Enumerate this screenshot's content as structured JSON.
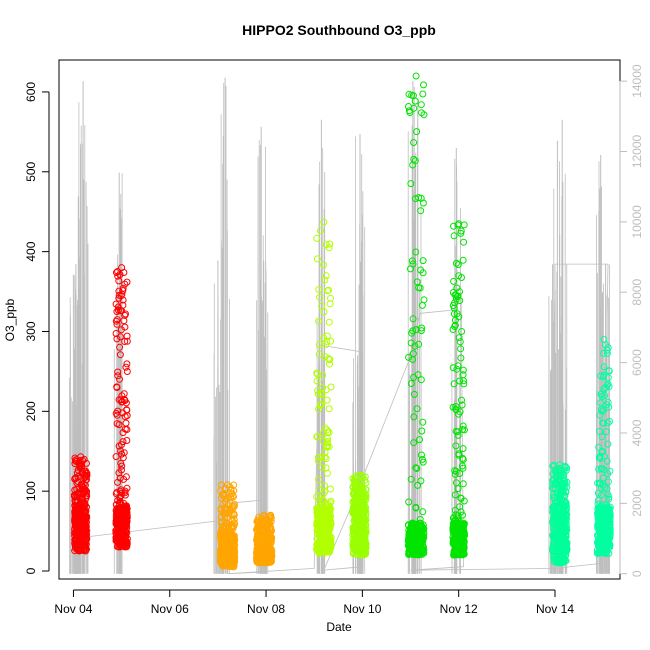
{
  "chart_data": {
    "type": "scatter",
    "title": "HIPPO2 Southbound O3_ppb",
    "xlabel": "Date",
    "ylabel": "O3_ppb",
    "xlim": [
      3.7,
      15.35
    ],
    "ylim": [
      -10,
      640
    ],
    "y2lim": [
      -150,
      14600
    ],
    "x_ticks": [
      4,
      6,
      8,
      10,
      12,
      14
    ],
    "x_tick_labels": [
      "Nov 04",
      "Nov 06",
      "Nov 08",
      "Nov 10",
      "Nov 12",
      "Nov 14"
    ],
    "y_ticks": [
      0,
      100,
      200,
      300,
      400,
      500,
      600
    ],
    "y2_ticks": [
      0,
      2000,
      4000,
      6000,
      8000,
      10000,
      12000,
      14000
    ],
    "grid": false,
    "colors": {
      "altitude_trace": "#bebebe",
      "axis": "#000000",
      "right_axis": "#bebebe"
    },
    "series": [
      {
        "color": "#ff0000",
        "x_start": 4.02,
        "x_end": 4.28,
        "baseline_range": [
          25,
          80
        ],
        "spike_max": 143
      },
      {
        "color": "#ff0000",
        "x_start": 4.88,
        "x_end": 5.12,
        "baseline_range": [
          30,
          80
        ],
        "spike_max": 380
      },
      {
        "color": "#ffa500",
        "x_start": 7.05,
        "x_end": 7.35,
        "baseline_range": [
          5,
          45
        ],
        "spike_max": 108
      },
      {
        "color": "#ffa500",
        "x_start": 7.8,
        "x_end": 8.12,
        "baseline_range": [
          10,
          45
        ],
        "spike_max": 70
      },
      {
        "color": "#b2ff00",
        "x_start": 9.05,
        "x_end": 9.35,
        "baseline_range": [
          22,
          80
        ],
        "spike_max": 437
      },
      {
        "color": "#9aff00",
        "x_start": 9.8,
        "x_end": 10.08,
        "baseline_range": [
          20,
          80
        ],
        "spike_max": 120
      },
      {
        "color": "#00e400",
        "x_start": 10.95,
        "x_end": 11.28,
        "baseline_range": [
          20,
          60
        ],
        "spike_max": 620
      },
      {
        "color": "#00e400",
        "x_start": 11.88,
        "x_end": 12.12,
        "baseline_range": [
          20,
          60
        ],
        "spike_max": 435
      },
      {
        "color": "#00ff99",
        "x_start": 13.95,
        "x_end": 14.25,
        "baseline_range": [
          10,
          80
        ],
        "spike_max": 133
      },
      {
        "color": "#00ffa0",
        "x_start": 14.88,
        "x_end": 15.15,
        "baseline_range": [
          22,
          80
        ],
        "spike_max": 290
      }
    ],
    "altitude_spikes": [
      [
        4.0,
        8500
      ],
      [
        4.05,
        8800
      ],
      [
        4.12,
        9000
      ],
      [
        4.2,
        14000
      ],
      [
        4.95,
        11400
      ],
      [
        7.0,
        8900
      ],
      [
        7.15,
        14100
      ],
      [
        7.9,
        12700
      ],
      [
        7.95,
        8900
      ],
      [
        9.15,
        12900
      ],
      [
        9.95,
        12500
      ],
      [
        9.9,
        6200
      ],
      [
        11.05,
        14000
      ],
      [
        11.15,
        13500
      ],
      [
        11.95,
        12100
      ],
      [
        13.95,
        8800
      ],
      [
        14.05,
        12300
      ],
      [
        14.15,
        12900
      ],
      [
        14.95,
        11900
      ],
      [
        15.05,
        8800
      ]
    ],
    "altitude_path": [
      [
        4.0,
        2500
      ],
      [
        4.25,
        2400
      ],
      [
        4.0,
        1000
      ],
      [
        7.0,
        1500
      ],
      [
        7.2,
        2000
      ],
      [
        8.0,
        2100
      ],
      [
        8.0,
        50
      ],
      [
        7.2,
        0
      ],
      [
        9.0,
        150
      ],
      [
        9.1,
        6500
      ],
      [
        10.0,
        6300
      ],
      [
        10.0,
        200
      ],
      [
        9.2,
        100
      ],
      [
        9.8,
        2000
      ],
      [
        10.95,
        6000
      ],
      [
        11.2,
        7400
      ],
      [
        11.95,
        7500
      ],
      [
        12.05,
        8000
      ],
      [
        12.1,
        200
      ],
      [
        11.0,
        100
      ],
      [
        14.0,
        150
      ],
      [
        15.0,
        300
      ],
      [
        15.1,
        8800
      ],
      [
        14.0,
        8800
      ],
      [
        14.0,
        300
      ]
    ]
  }
}
